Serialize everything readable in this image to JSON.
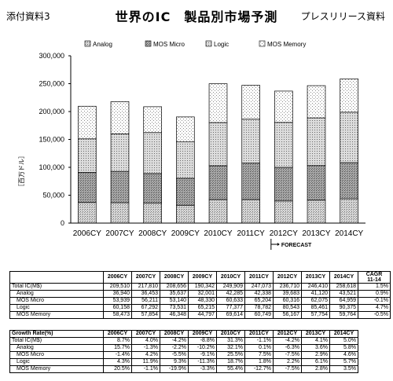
{
  "header": {
    "left": "添付資料3",
    "title": "世界のIC　製品別市場予測",
    "right": "プレスリリース資料"
  },
  "chart_data": {
    "type": "bar",
    "stacked": true,
    "categories": [
      "2006CY",
      "2007CY",
      "2008CY",
      "2009CY",
      "2010CY",
      "2011CY",
      "2012CY",
      "2013CY",
      "2014CY"
    ],
    "series": [
      {
        "name": "Analog",
        "values": [
          36940,
          36453,
          35637,
          32001,
          42285,
          42338,
          39683,
          41120,
          43521
        ],
        "pattern": "hatch"
      },
      {
        "name": "MOS Micro",
        "values": [
          53939,
          56211,
          53140,
          48330,
          60633,
          65204,
          60316,
          62075,
          64959
        ],
        "pattern": "dots-dark"
      },
      {
        "name": "Logic",
        "values": [
          60158,
          67292,
          73531,
          65215,
          77377,
          78782,
          80543,
          85461,
          90375
        ],
        "pattern": "dots-medium"
      },
      {
        "name": "MOS Memory",
        "values": [
          58473,
          57854,
          46348,
          44797,
          69614,
          60749,
          56167,
          57754,
          59764
        ],
        "pattern": "dots-light"
      }
    ],
    "ylabel": "［百万ドル］",
    "ylim": [
      0,
      300000
    ],
    "yticks": [
      "0",
      "50,000",
      "100,000",
      "150,000",
      "200,000",
      "250,000",
      "300,000"
    ],
    "grid": false,
    "legend_position": "top",
    "forecast_marker": {
      "label": "FORECAST",
      "from_category": "2012CY"
    }
  },
  "table1": {
    "headers": [
      "",
      "2006CY",
      "2007CY",
      "2008CY",
      "2009CY",
      "2010CY",
      "2011CY",
      "2012CY",
      "2013CY",
      "2014CY",
      "CAGR\n11-14"
    ],
    "rows": [
      {
        "label": "Total IC(M$)",
        "values": [
          "209,510",
          "217,810",
          "208,656",
          "190,342",
          "249,909",
          "247,073",
          "236,710",
          "246,410",
          "258,618",
          "1.5%"
        ]
      },
      {
        "label": "Analog",
        "values": [
          "36,940",
          "36,453",
          "35,637",
          "32,001",
          "42,285",
          "42,338",
          "39,683",
          "41,120",
          "43,521",
          "0.9%"
        ]
      },
      {
        "label": "MOS Micro",
        "values": [
          "53,939",
          "56,211",
          "53,140",
          "48,330",
          "60,633",
          "65,204",
          "60,316",
          "62,075",
          "64,959",
          "-0.1%"
        ]
      },
      {
        "label": "Logic",
        "values": [
          "60,158",
          "67,292",
          "73,531",
          "65,215",
          "77,377",
          "78,782",
          "80,543",
          "85,461",
          "90,375",
          "4.7%"
        ]
      },
      {
        "label": "MOS Memory",
        "values": [
          "58,473",
          "57,854",
          "46,348",
          "44,797",
          "69,614",
          "60,749",
          "56,167",
          "57,754",
          "59,764",
          "-0.5%"
        ]
      }
    ]
  },
  "table2": {
    "headers": [
      "Growth Rate(%)",
      "2006CY",
      "2007CY",
      "2008CY",
      "2009CY",
      "2010CY",
      "2011CY",
      "2012CY",
      "2013CY",
      "2014CY"
    ],
    "rows": [
      {
        "label": "Total IC(M$)",
        "values": [
          "8.7%",
          "4.0%",
          "-4.2%",
          "-8.8%",
          "31.3%",
          "-1.1%",
          "-4.2%",
          "4.1%",
          "5.0%"
        ]
      },
      {
        "label": "Analog",
        "values": [
          "15.7%",
          "-1.3%",
          "-2.2%",
          "-10.2%",
          "32.1%",
          "0.1%",
          "-6.3%",
          "3.6%",
          "5.8%"
        ]
      },
      {
        "label": "MOS Micro",
        "values": [
          "-1.4%",
          "4.2%",
          "-5.5%",
          "-9.1%",
          "25.5%",
          "7.5%",
          "-7.5%",
          "2.9%",
          "4.6%"
        ]
      },
      {
        "label": "Logic",
        "values": [
          "4.3%",
          "11.9%",
          "9.3%",
          "-11.3%",
          "18.7%",
          "1.8%",
          "2.2%",
          "6.1%",
          "5.7%"
        ]
      },
      {
        "label": "MOS Memory",
        "values": [
          "20.5%",
          "-1.1%",
          "-19.9%",
          "-3.3%",
          "55.4%",
          "-12.7%",
          "-7.5%",
          "2.8%",
          "3.5%"
        ]
      }
    ]
  }
}
